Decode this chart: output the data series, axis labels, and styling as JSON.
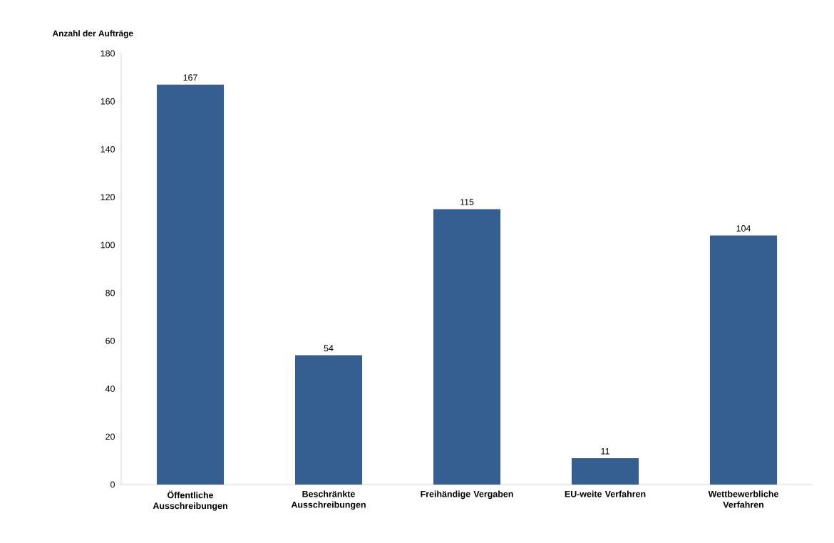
{
  "chart_data": {
    "type": "bar",
    "ylabel": "Anzahl der Aufträge",
    "categories": [
      "Öffentliche Ausschreibungen",
      "Beschränkte Ausschreibungen",
      "Freihändige Vergaben",
      "EU-weite Verfahren",
      "Wettbewerbliche Verfahren"
    ],
    "values": [
      167,
      54,
      115,
      11,
      104
    ],
    "color": "#355f91",
    "ylim": [
      0,
      180
    ],
    "yticks": [
      0,
      20,
      40,
      60,
      80,
      100,
      120,
      140,
      160,
      180
    ],
    "grid": false,
    "data_labels": true
  }
}
